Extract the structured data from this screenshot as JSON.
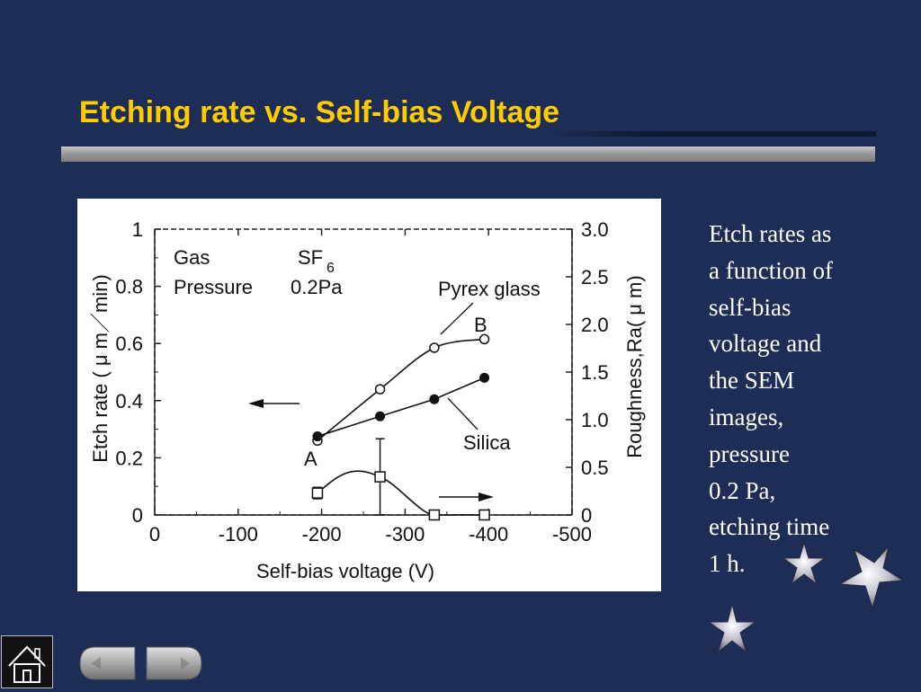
{
  "slide": {
    "title": "Etching rate vs. Self-bias Voltage",
    "background_color": "#1e2d55",
    "title_color": "#ffcc00"
  },
  "side_text": {
    "lines": [
      "Etch rates as",
      "a function of",
      "self-bias",
      "voltage and",
      "the SEM",
      "images,",
      "pressure",
      "0.2 Pa,",
      "etching time",
      "1 h."
    ]
  },
  "chart_data": {
    "type": "line",
    "xlabel": "Self-bias voltage (V)",
    "ylabel_left": "Etch rate ( μ m／min)",
    "ylabel_right": "Roughness,Ra( μ m)",
    "x_ticks": [
      "0",
      "-100",
      "-200",
      "-300",
      "-400",
      "-500"
    ],
    "y_left_ticks": [
      "0",
      "0.2",
      "0.4",
      "0.6",
      "0.8",
      "1"
    ],
    "y_right_ticks": [
      "0",
      "0.5",
      "1.0",
      "1.5",
      "2.0",
      "2.5",
      "3.0"
    ],
    "xlim": [
      0,
      -500
    ],
    "ylim_left": [
      0,
      1
    ],
    "ylim_right": [
      0,
      3.0
    ],
    "legend_gas_label": "Gas",
    "legend_gas_value": "SF",
    "legend_gas_subscript": "6",
    "legend_pressure_label": "Pressure",
    "legend_pressure_value": "0.2Pa",
    "series": [
      {
        "name": "Pyrex glass",
        "axis": "left",
        "marker": "open-circle",
        "x": [
          -195,
          -270,
          -335,
          -395
        ],
        "y": [
          0.26,
          0.44,
          0.585,
          0.615
        ]
      },
      {
        "name": "Silica",
        "axis": "left",
        "marker": "filled-circle",
        "x": [
          -195,
          -270,
          -335,
          -395
        ],
        "y": [
          0.275,
          0.345,
          0.405,
          0.48
        ]
      },
      {
        "name": "Roughness",
        "axis": "right",
        "marker": "open-square",
        "x": [
          -195,
          -270,
          -335,
          -395
        ],
        "y": [
          0.23,
          0.4,
          0.0,
          0.0
        ],
        "error_bars": [
          0.06,
          0.4,
          0,
          0
        ]
      }
    ],
    "annotations": [
      "A",
      "B"
    ]
  },
  "nav": {
    "home_icon": "home-icon",
    "prev_icon": "prev-arrow-icon",
    "next_icon": "next-arrow-icon"
  }
}
